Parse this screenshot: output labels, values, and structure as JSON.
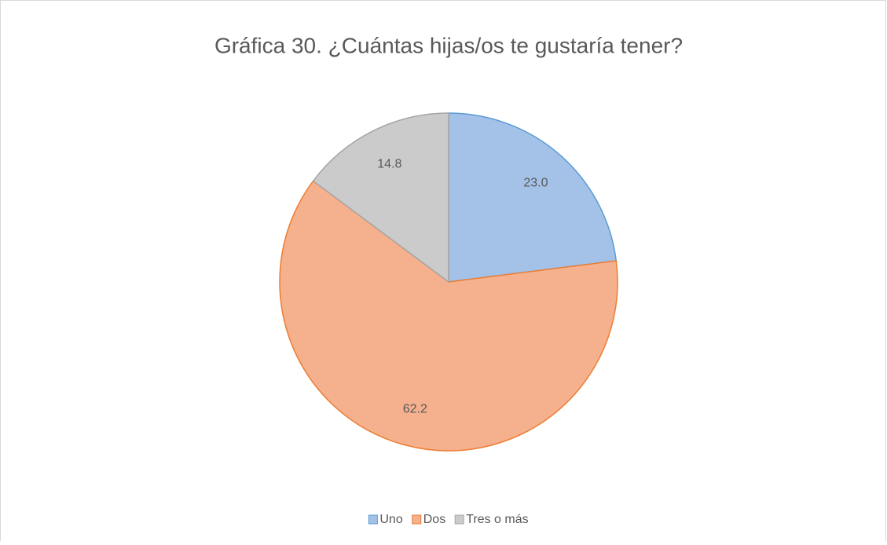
{
  "chart_data": {
    "type": "pie",
    "title": "Gráfica 30. ¿Cuántas hijas/os te gustaría tener?",
    "categories": [
      "Uno",
      "Dos",
      "Tres o más"
    ],
    "values": [
      23.0,
      62.2,
      14.8
    ],
    "value_labels": [
      "23.0",
      "62.2",
      "14.8"
    ],
    "colors": [
      "#a4c2e8",
      "#f5b08e",
      "#cbcbcb"
    ],
    "edge_colors": [
      "#5b9bd5",
      "#ed7d31",
      "#a5a5a5"
    ],
    "legend": "bottom"
  }
}
